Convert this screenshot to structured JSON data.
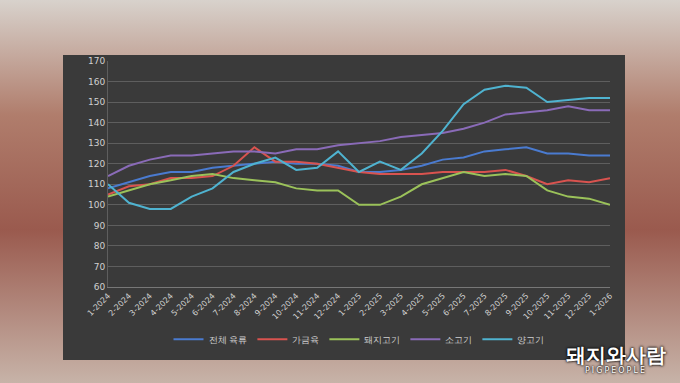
{
  "chart_data": {
    "type": "line",
    "categories": [
      "1-2024",
      "2-2024",
      "3-2024",
      "4-2024",
      "5-2024",
      "6-2024",
      "7-2024",
      "8-2024",
      "9-2024",
      "10-2024",
      "11-2024",
      "12-2024",
      "1-2025",
      "2-2025",
      "3-2025",
      "4-2025",
      "5-2025",
      "6-2025",
      "7-2025",
      "8-2025",
      "9-2025",
      "10-2025",
      "11-2025",
      "12-2025",
      "1-2026"
    ],
    "series": [
      {
        "name": "전체 육류",
        "color": "#4a7bd0",
        "values": [
          108,
          111,
          114,
          116,
          116,
          118,
          119,
          120,
          121,
          120,
          120,
          119,
          116,
          116,
          117,
          119,
          122,
          123,
          126,
          127,
          128,
          125,
          125,
          124,
          124
        ]
      },
      {
        "name": "가금육",
        "color": "#d9534f",
        "values": [
          105,
          109,
          110,
          113,
          113,
          114,
          119,
          128,
          121,
          121,
          120,
          118,
          116,
          115,
          115,
          115,
          116,
          116,
          116,
          117,
          114,
          110,
          112,
          111,
          113
        ]
      },
      {
        "name": "돼지고기",
        "color": "#9bc25a",
        "values": [
          104,
          107,
          110,
          112,
          114,
          115,
          113,
          112,
          111,
          108,
          107,
          107,
          100,
          100,
          104,
          110,
          113,
          116,
          114,
          115,
          114,
          107,
          104,
          103,
          100
        ]
      },
      {
        "name": "소고기",
        "color": "#8a6bb8",
        "values": [
          114,
          119,
          122,
          124,
          124,
          125,
          126,
          126,
          125,
          127,
          127,
          129,
          130,
          131,
          133,
          134,
          135,
          137,
          140,
          144,
          145,
          146,
          148,
          146,
          146
        ]
      },
      {
        "name": "양고기",
        "color": "#4fb3d0",
        "values": [
          110,
          101,
          98,
          98,
          104,
          108,
          116,
          120,
          123,
          117,
          118,
          126,
          116,
          121,
          117,
          125,
          136,
          149,
          156,
          158,
          157,
          150,
          151,
          152,
          152
        ]
      }
    ],
    "ylim": [
      60,
      170
    ],
    "yticks": [
      60,
      70,
      80,
      90,
      100,
      110,
      120,
      130,
      140,
      150,
      160,
      170
    ],
    "grid": true,
    "legend": "bottom",
    "annotations": [
      "돼지와사람",
      "PIGPEOPLE"
    ]
  }
}
